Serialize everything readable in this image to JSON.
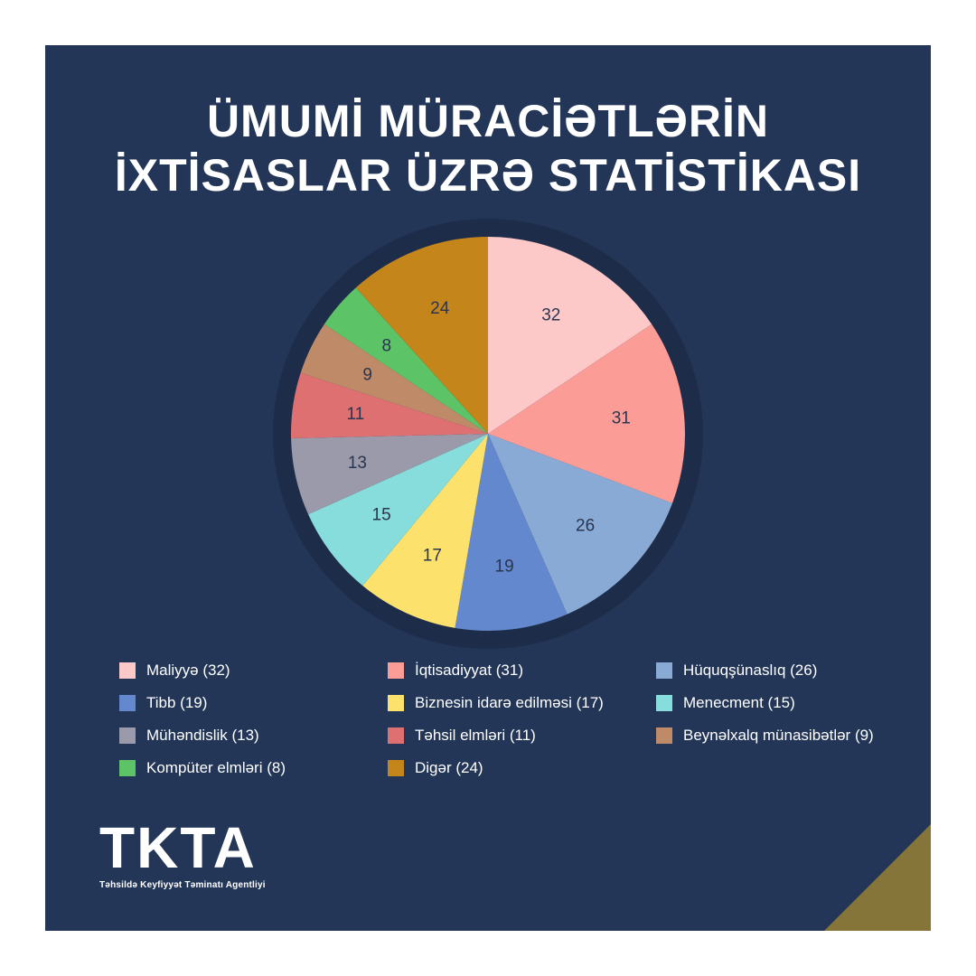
{
  "title": {
    "line1": "ÜMUMİ MÜRACİƏTLƏRİN",
    "line2": "İXTİSASLAR ÜZRƏ STATİSTİKASI"
  },
  "logo": {
    "mark": "TKTA",
    "subtitle": "Təhsildə Keyfiyyət Təminatı Agentliyi"
  },
  "colors": {
    "background": "#233657",
    "corner": "#857538"
  },
  "chart_data": {
    "type": "pie",
    "title": "ÜMUMİ MÜRACİƏTLƏRİN İXTİSASLAR ÜZRƏ STATİSTİKASI",
    "legend_position": "bottom",
    "slices": [
      {
        "label": "Maliyyə",
        "legend": "Maliyyə (32)",
        "value": 32,
        "color": "#FDC8C8"
      },
      {
        "label": "İqtisadiyyat",
        "legend": "İqtisadiyyat (31)",
        "value": 31,
        "color": "#FC9C96"
      },
      {
        "label": "Hüquqşünaslıq",
        "legend": "Hüquqşünaslıq (26)",
        "value": 26,
        "color": "#8AAAD6"
      },
      {
        "label": "Tibb",
        "legend": "Tibb (19)",
        "value": 19,
        "color": "#6488CE"
      },
      {
        "label": "Biznesin idarə edilməsi",
        "legend": "Biznesin idarə edilməsi (17)",
        "value": 17,
        "color": "#FCE16C"
      },
      {
        "label": "Menecment",
        "legend": "Menecment (15)",
        "value": 15,
        "color": "#86DDDB"
      },
      {
        "label": "Mühəndislik",
        "legend": "Mühəndislik (13)",
        "value": 13,
        "color": "#9A9AAA"
      },
      {
        "label": "Təhsil elmləri",
        "legend": "Təhsil elmləri (11)",
        "value": 11,
        "color": "#DF7071"
      },
      {
        "label": "Beynəlxalq münasibətlər",
        "legend": "Beynəlxalq münasibətlər (9)",
        "value": 9,
        "color": "#BE8A67"
      },
      {
        "label": "Kompüter elmləri",
        "legend": "Kompüter elmləri (8)",
        "value": 8,
        "color": "#5CC467"
      },
      {
        "label": "Digər",
        "legend": "Digər (24)",
        "value": 24,
        "color": "#C4851B"
      }
    ]
  }
}
